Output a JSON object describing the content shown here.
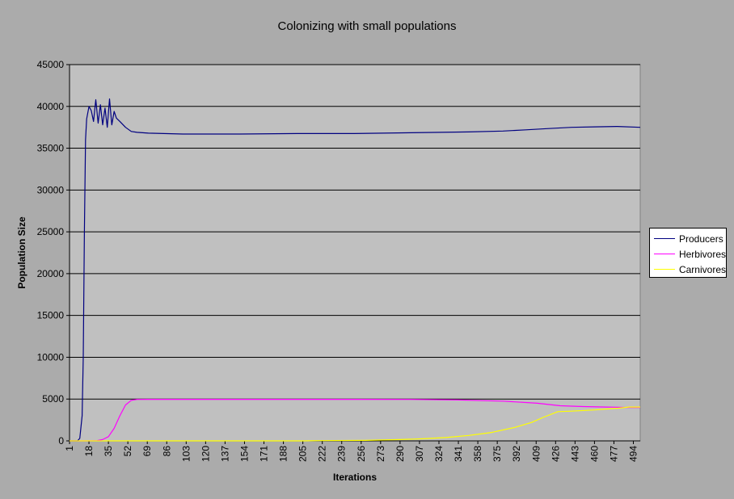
{
  "chart_data": {
    "type": "line",
    "title": "Colonizing with small populations",
    "xlabel": "Iterations",
    "ylabel": "Population Size",
    "xlim": [
      1,
      500
    ],
    "ylim": [
      0,
      45000
    ],
    "grid": "horizontal",
    "legend_position": "right",
    "y_ticks": [
      "0",
      "5000",
      "10000",
      "15000",
      "20000",
      "25000",
      "30000",
      "35000",
      "40000",
      "45000"
    ],
    "x_tick_labels": [
      "1",
      "18",
      "35",
      "52",
      "69",
      "86",
      "103",
      "120",
      "137",
      "154",
      "171",
      "188",
      "205",
      "222",
      "239",
      "256",
      "273",
      "290",
      "307",
      "324",
      "341",
      "358",
      "375",
      "392",
      "409",
      "426",
      "443",
      "460",
      "477",
      "494"
    ],
    "series": [
      {
        "name": "Producers",
        "color": "#000080",
        "points": [
          [
            1,
            0
          ],
          [
            8,
            0
          ],
          [
            10,
            300
          ],
          [
            12,
            3000
          ],
          [
            13,
            10000
          ],
          [
            14,
            25000
          ],
          [
            15,
            36000
          ],
          [
            16,
            38500
          ],
          [
            18,
            40000
          ],
          [
            20,
            39500
          ],
          [
            22,
            38200
          ],
          [
            24,
            40800
          ],
          [
            26,
            38000
          ],
          [
            28,
            40200
          ],
          [
            30,
            37800
          ],
          [
            32,
            39800
          ],
          [
            34,
            37500
          ],
          [
            36,
            40900
          ],
          [
            38,
            37800
          ],
          [
            40,
            39400
          ],
          [
            42,
            38600
          ],
          [
            45,
            38200
          ],
          [
            50,
            37500
          ],
          [
            55,
            37000
          ],
          [
            60,
            36900
          ],
          [
            70,
            36800
          ],
          [
            100,
            36700
          ],
          [
            150,
            36700
          ],
          [
            200,
            36750
          ],
          [
            250,
            36750
          ],
          [
            300,
            36850
          ],
          [
            350,
            36950
          ],
          [
            380,
            37050
          ],
          [
            400,
            37200
          ],
          [
            420,
            37350
          ],
          [
            440,
            37500
          ],
          [
            460,
            37550
          ],
          [
            480,
            37600
          ],
          [
            500,
            37500
          ]
        ]
      },
      {
        "name": "Herbivores",
        "color": "#ff00ff",
        "points": [
          [
            1,
            0
          ],
          [
            20,
            0
          ],
          [
            25,
            30
          ],
          [
            30,
            150
          ],
          [
            35,
            500
          ],
          [
            40,
            1500
          ],
          [
            45,
            3000
          ],
          [
            50,
            4300
          ],
          [
            55,
            4850
          ],
          [
            60,
            4950
          ],
          [
            70,
            4960
          ],
          [
            150,
            4960
          ],
          [
            250,
            4960
          ],
          [
            300,
            4950
          ],
          [
            340,
            4900
          ],
          [
            380,
            4750
          ],
          [
            410,
            4500
          ],
          [
            430,
            4200
          ],
          [
            450,
            4100
          ],
          [
            470,
            4050
          ],
          [
            490,
            4000
          ],
          [
            500,
            4000
          ]
        ]
      },
      {
        "name": "Carnivores",
        "color": "#ffff00",
        "points": [
          [
            1,
            0
          ],
          [
            205,
            0
          ],
          [
            220,
            30
          ],
          [
            260,
            60
          ],
          [
            290,
            150
          ],
          [
            310,
            250
          ],
          [
            330,
            400
          ],
          [
            350,
            650
          ],
          [
            370,
            1000
          ],
          [
            390,
            1600
          ],
          [
            405,
            2200
          ],
          [
            415,
            2800
          ],
          [
            428,
            3500
          ],
          [
            440,
            3550
          ],
          [
            460,
            3700
          ],
          [
            480,
            3900
          ],
          [
            490,
            4050
          ],
          [
            500,
            4050
          ]
        ]
      }
    ]
  }
}
